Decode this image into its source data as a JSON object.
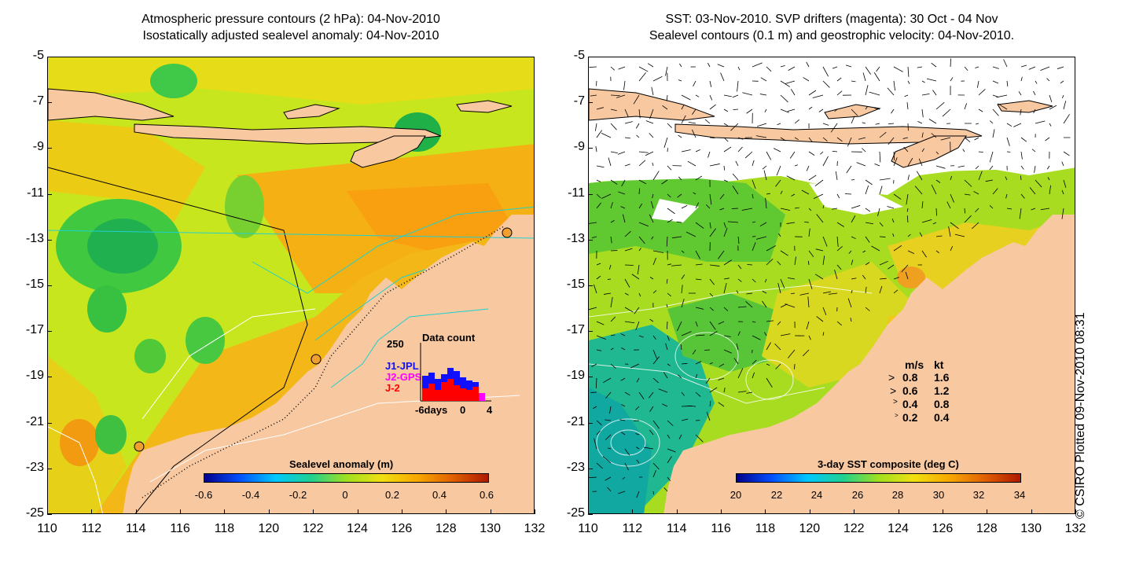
{
  "left_panel": {
    "title_line1": "Atmospheric pressure contours (2 hPa): 04-Nov-2010",
    "title_line2": "Isostatically adjusted sealevel anomaly: 04-Nov-2010",
    "colorbar": {
      "title": "Sealevel anomaly (m)",
      "ticks": [
        "-0.6",
        "-0.4",
        "-0.2",
        "0",
        "0.2",
        "0.4",
        "0.6"
      ],
      "range": [
        -0.6,
        0.6
      ]
    },
    "data_count_inset": {
      "title": "Data count",
      "ymax_label": "250",
      "series": [
        {
          "name": "J1-JPL",
          "color": "#1010ff"
        },
        {
          "name": "J2-GPS",
          "color": "#ff00ff"
        },
        {
          "name": "J-2",
          "color": "#ff0000"
        }
      ],
      "x_labels": [
        "-6days",
        "0",
        "4"
      ]
    }
  },
  "right_panel": {
    "title_line1": "SST: 03-Nov-2010. SVP drifters (magenta): 30 Oct - 04 Nov",
    "title_line2": "Sealevel contours (0.1 m) and geostrophic velocity: 04-Nov-2010.",
    "colorbar": {
      "title": "3-day SST composite (deg C)",
      "ticks": [
        "20",
        "22",
        "24",
        "26",
        "28",
        "30",
        "32",
        "34"
      ],
      "range": [
        20,
        34
      ]
    },
    "velocity_legend": {
      "header_ms": "m/s",
      "header_kt": "kt",
      "rows": [
        {
          "ms": "0.8",
          "kt": "1.6"
        },
        {
          "ms": "0.6",
          "kt": "1.2"
        },
        {
          "ms": "0.4",
          "kt": "0.8"
        },
        {
          "ms": "0.2",
          "kt": "0.4"
        }
      ]
    }
  },
  "axes": {
    "x_ticks": [
      "110",
      "112",
      "114",
      "116",
      "118",
      "120",
      "122",
      "124",
      "126",
      "128",
      "130",
      "132"
    ],
    "y_ticks": [
      "-5",
      "-7",
      "-9",
      "-11",
      "-13",
      "-15",
      "-17",
      "-19",
      "-21",
      "-23",
      "-25"
    ],
    "lon_range": [
      110,
      132
    ],
    "lat_range": [
      -25,
      -5
    ]
  },
  "copyright": "© CSIRO Plotted 09-Nov-2010 08:31",
  "colors": {
    "land": "#f8c8a0",
    "ocean_base": "#c8e61e",
    "cloud": "#ffffff",
    "bathymetry_line": "#20d0d0"
  }
}
